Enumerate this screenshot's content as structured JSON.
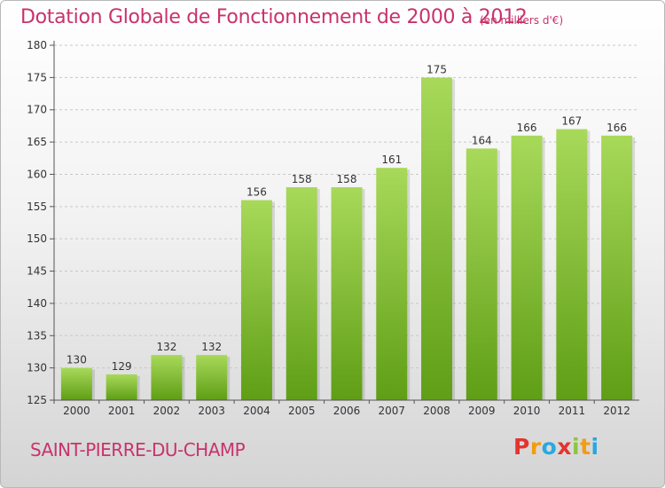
{
  "title": "Dotation Globale de Fonctionnement de 2000 à 2012",
  "unit_note": "(en milliers d'€)",
  "town": "SAINT-PIERRE-DU-CHAMP",
  "logo": {
    "letters": [
      "P",
      "r",
      "o",
      "x",
      "i",
      "t",
      "i"
    ],
    "colors": [
      "#e3342f",
      "#f39c12",
      "#27a9e1",
      "#e3342f",
      "#8cc63f",
      "#f39c12",
      "#27a9e1"
    ]
  },
  "colors": {
    "title": "#c8336b",
    "bar_top": "#a8d95a",
    "bar_bottom": "#5f9e16",
    "axis": "#555555",
    "grid": "#c8c8c8"
  },
  "chart_data": {
    "type": "bar",
    "categories": [
      "2000",
      "2001",
      "2002",
      "2003",
      "2004",
      "2005",
      "2006",
      "2007",
      "2008",
      "2009",
      "2010",
      "2011",
      "2012"
    ],
    "values": [
      130,
      129,
      132,
      132,
      156,
      158,
      158,
      161,
      175,
      164,
      166,
      167,
      166
    ],
    "title": "Dotation Globale de Fonctionnement de 2000 à 2012",
    "ylim": [
      125,
      180
    ],
    "yticks": [
      125,
      130,
      135,
      140,
      145,
      150,
      155,
      160,
      165,
      170,
      175,
      180
    ],
    "grid": "horizontal dashed"
  }
}
